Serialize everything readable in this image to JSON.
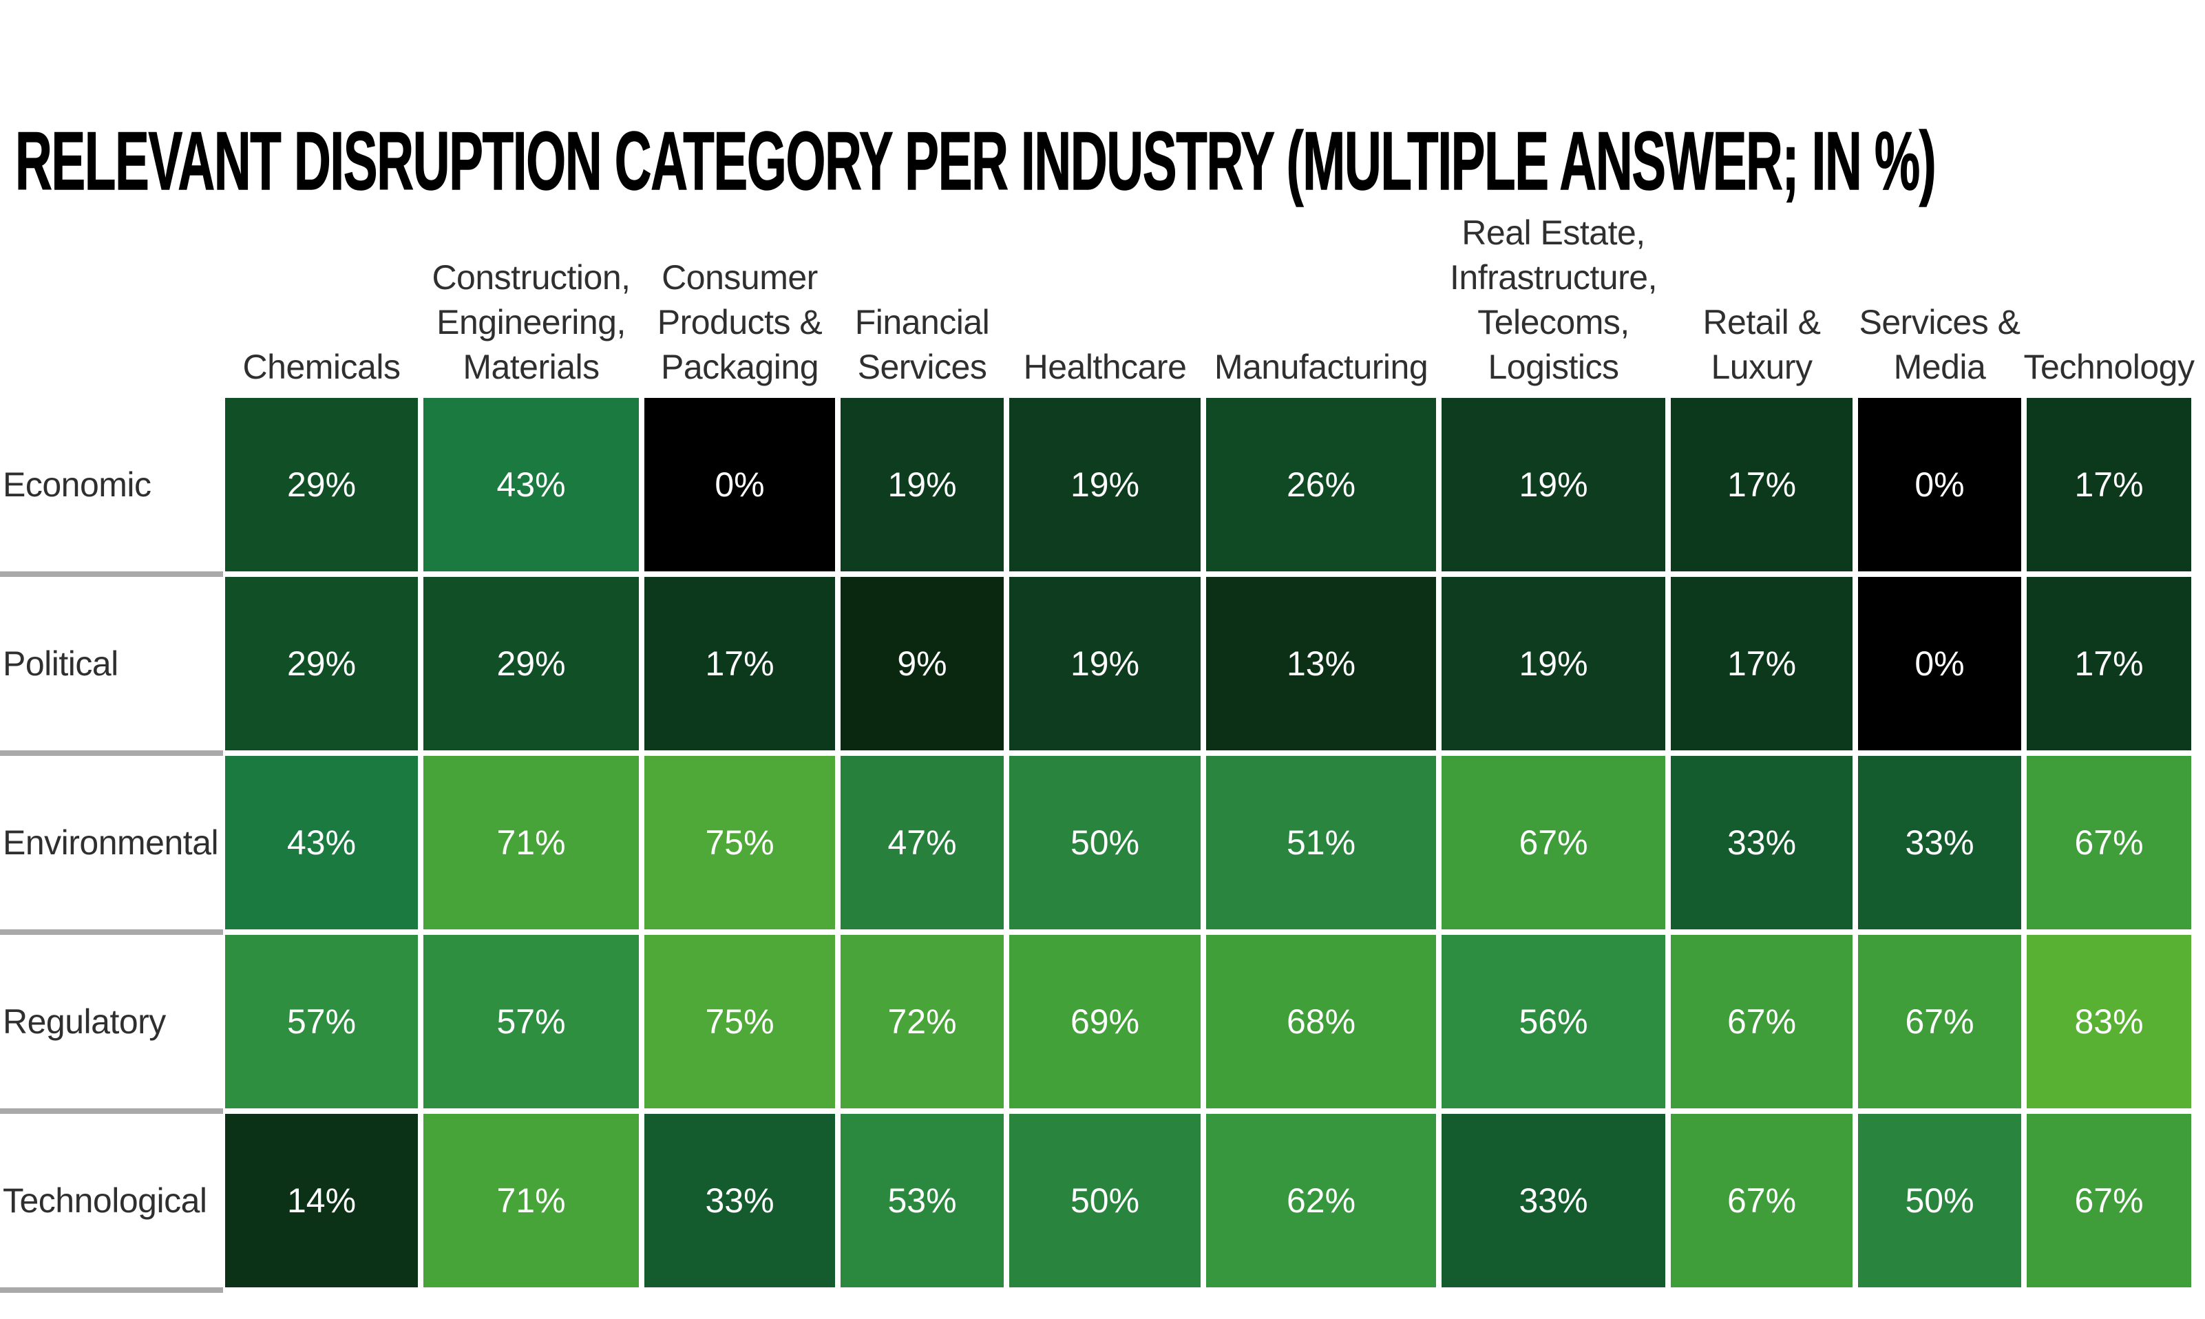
{
  "title": "RELEVANT DISRUPTION CATEGORY PER INDUSTRY (MULTIPLE ANSWER; IN %)",
  "chart_data": {
    "type": "heatmap",
    "title": "RELEVANT DISRUPTION CATEGORY PER INDUSTRY (MULTIPLE ANSWER; IN %)",
    "unit": "%",
    "value_suffix": "%",
    "columns": [
      "Chemicals",
      "Construction,\nEngineering,\nMaterials",
      "Consumer\nProducts &\nPackaging",
      "Financial\nServices",
      "Healthcare",
      "Manufacturing",
      "Real Estate,\nInfrastructure,\nTelecoms,\nLogistics",
      "Retail &\nLuxury",
      "Services &\nMedia",
      "Technology"
    ],
    "rows": [
      "Economic",
      "Political",
      "Environmental",
      "Regulatory",
      "Technological"
    ],
    "values": [
      [
        29,
        43,
        0,
        19,
        19,
        26,
        19,
        17,
        0,
        17
      ],
      [
        29,
        29,
        17,
        9,
        19,
        13,
        19,
        17,
        0,
        17
      ],
      [
        43,
        71,
        75,
        47,
        50,
        51,
        67,
        33,
        33,
        67
      ],
      [
        57,
        57,
        75,
        72,
        69,
        68,
        56,
        67,
        67,
        83
      ],
      [
        14,
        71,
        33,
        53,
        50,
        62,
        33,
        67,
        50,
        67
      ]
    ],
    "value_range": [
      0,
      83
    ],
    "legend": "none",
    "grid_gap_color": "#ffffff",
    "row_separator_color": "#a9a9a9",
    "cell_text_color": "#ffffff",
    "color_scale": {
      "type": "piecewise-linear",
      "anchors": [
        [
          0,
          "#000000"
        ],
        [
          9,
          "#09280f"
        ],
        [
          19,
          "#0d3c1f"
        ],
        [
          29,
          "#115027"
        ],
        [
          43,
          "#1b7a40"
        ],
        [
          47,
          "#27803c"
        ],
        [
          57,
          "#2e8f41"
        ],
        [
          67,
          "#3f9e3a"
        ],
        [
          75,
          "#4fa938"
        ],
        [
          83,
          "#58b133"
        ]
      ]
    }
  }
}
